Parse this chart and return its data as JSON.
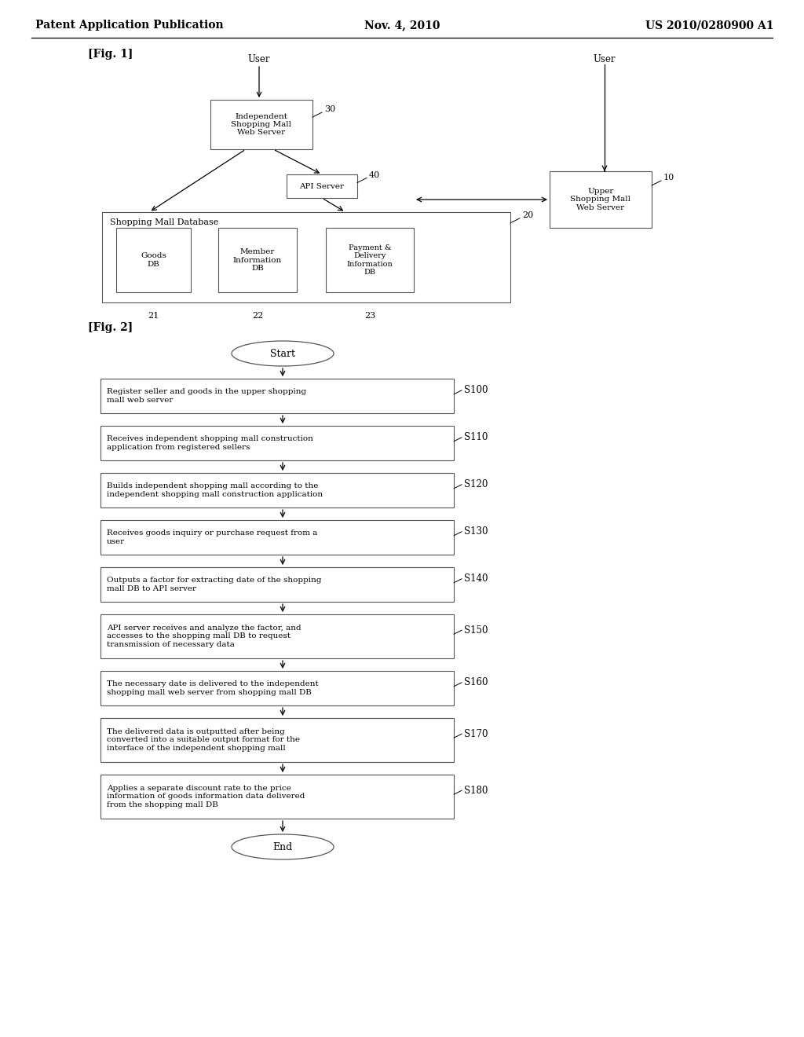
{
  "background_color": "#ffffff",
  "header_left": "Patent Application Publication",
  "header_center": "Nov. 4, 2010",
  "header_right": "US 2010/0280900 A1",
  "fig1_label": "[Fig. 1]",
  "fig2_label": "[Fig. 2]",
  "fig1": {
    "user_left_label": "User",
    "user_right_label": "User",
    "indep_box": {
      "label": "Independent\nShopping Mall\nWeb Server",
      "num": "30"
    },
    "api_box": {
      "label": "API Server",
      "num": "40"
    },
    "db_outer_box": {
      "label": "Shopping Mall Database",
      "num": "20"
    },
    "goods_box": {
      "label": "Goods\nDB",
      "num": "21"
    },
    "member_box": {
      "label": "Member\nInformation\nDB",
      "num": "22"
    },
    "payment_box": {
      "label": "Payment &\nDelivery\nInformation\nDB",
      "num": "23"
    },
    "upper_box": {
      "label": "Upper\nShopping Mall\nWeb Server",
      "num": "10"
    }
  },
  "fig2": {
    "steps": [
      {
        "id": "s100",
        "text": "Register seller and goods in the upper shopping\nmall web server",
        "label": "S100",
        "lines": 2
      },
      {
        "id": "s110",
        "text": "Receives independent shopping mall construction\napplication from registered sellers",
        "label": "S110",
        "lines": 2
      },
      {
        "id": "s120",
        "text": "Builds independent shopping mall according to the\nindependent shopping mall construction application",
        "label": "S120",
        "lines": 2
      },
      {
        "id": "s130",
        "text": "Receives goods inquiry or purchase request from a\nuser",
        "label": "S130",
        "lines": 2
      },
      {
        "id": "s140",
        "text": "Outputs a factor for extracting date of the shopping\nmall DB to API server",
        "label": "S140",
        "lines": 2
      },
      {
        "id": "s150",
        "text": "API server receives and analyze the factor, and\naccesses to the shopping mall DB to request\ntransmission of necessary data",
        "label": "S150",
        "lines": 3
      },
      {
        "id": "s160",
        "text": "The necessary date is delivered to the independent\nshopping mall web server from shopping mall DB",
        "label": "S160",
        "lines": 2
      },
      {
        "id": "s170",
        "text": "The delivered data is outputted after being\nconverted into a suitable output format for the\ninterface of the independent shopping mall",
        "label": "S170",
        "lines": 3
      },
      {
        "id": "s180",
        "text": "Applies a separate discount rate to the price\ninformation of goods information data delivered\nfrom the shopping mall DB",
        "label": "S180",
        "lines": 3
      }
    ]
  }
}
